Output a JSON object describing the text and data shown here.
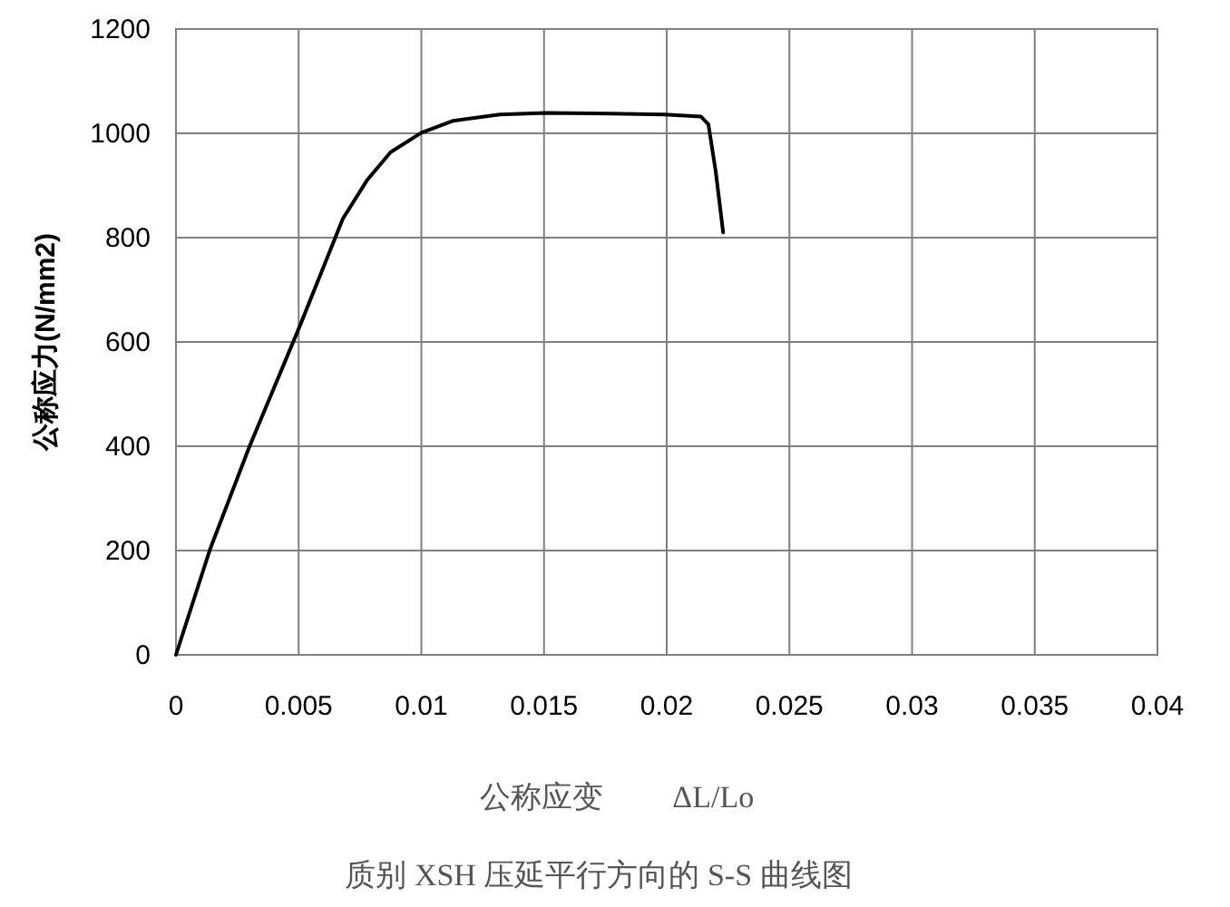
{
  "chart_data": {
    "type": "line",
    "title": "质别 XSH 压延平行方向的 S-S 曲线图",
    "xlabel": "公称应变　　 ΔL/Lo",
    "ylabel": "公称应力(N/mm2)",
    "series": [
      {
        "color": "#000000",
        "x": [
          0,
          0.0014,
          0.003,
          0.005,
          0.0068,
          0.0078,
          0.00875,
          0.01,
          0.0113,
          0.0132,
          0.0151,
          0.0177,
          0.0199,
          0.0214,
          0.0217,
          0.022,
          0.0223
        ],
        "values": [
          0,
          204,
          400,
          625,
          836,
          911,
          964,
          1001,
          1024,
          1036,
          1039,
          1038,
          1036,
          1032,
          1017,
          926,
          810
        ]
      }
    ],
    "xlim": [
      0,
      0.04
    ],
    "ylim": [
      0,
      1200
    ],
    "xticks": [
      0,
      0.005,
      0.01,
      0.015,
      0.02,
      0.025,
      0.03,
      0.035,
      0.04
    ],
    "yticks": [
      0,
      200,
      400,
      600,
      800,
      1000,
      1200
    ],
    "grid": true
  }
}
